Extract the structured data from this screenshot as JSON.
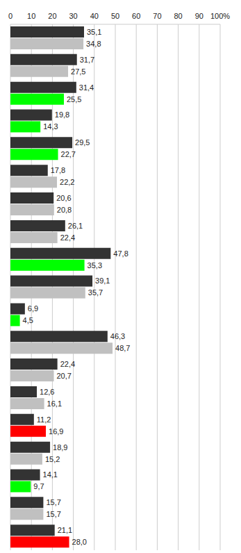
{
  "chart_data": {
    "type": "bar",
    "orientation": "horizontal",
    "grid": true,
    "data_labels": true,
    "tick_labels": "x",
    "categories": [
      null,
      null,
      null,
      null,
      null,
      null,
      null,
      null,
      null,
      null,
      null,
      null,
      null,
      null,
      null,
      null,
      null,
      null,
      null
    ],
    "xlim": [
      0,
      100
    ],
    "xticks": [
      0,
      10,
      20,
      30,
      40,
      50,
      60,
      70,
      80,
      90,
      {
        "value": 100,
        "label": "100%"
      }
    ],
    "series": [
      {
        "color": "#333333",
        "values": [
          35.1,
          31.7,
          31.4,
          19.8,
          29.5,
          17.8,
          20.6,
          26.1,
          47.8,
          39.1,
          6.9,
          46.3,
          22.4,
          12.6,
          11.2,
          18.9,
          14.1,
          15.7,
          21.1
        ],
        "value_labels": [
          "35,1",
          "31,7",
          "31,4",
          "19,8",
          "29,5",
          "17,8",
          "20,6",
          "26,1",
          "47,8",
          "39,1",
          "6,9",
          "46,3",
          "22,4",
          "12,6",
          "11,2",
          "18,9",
          "14,1",
          "15,7",
          "21,1"
        ]
      },
      {
        "colors": [
          "#c0c0c0",
          "#c0c0c0",
          "#00ff00",
          "#00ff00",
          "#00ff00",
          "#c0c0c0",
          "#c0c0c0",
          "#c0c0c0",
          "#00ff00",
          "#c0c0c0",
          "#00ff00",
          "#c0c0c0",
          "#c0c0c0",
          "#c0c0c0",
          "#ff0000",
          "#c0c0c0",
          "#00ff00",
          "#c0c0c0",
          "#ff0000"
        ],
        "values": [
          34.8,
          27.5,
          25.5,
          14.3,
          22.7,
          22.2,
          20.8,
          22.4,
          35.3,
          35.7,
          4.5,
          48.7,
          20.7,
          16.1,
          16.9,
          15.2,
          9.7,
          15.7,
          28.0
        ],
        "value_labels": [
          "34,8",
          "27,5",
          "25,5",
          "14,3",
          "22,7",
          "22,2",
          "20,8",
          "22,4",
          "35,3",
          "35,7",
          "4,5",
          "48,7",
          "20,7",
          "16,1",
          "16,9",
          "15,2",
          "9,7",
          "15,7",
          "28,0"
        ]
      }
    ]
  }
}
